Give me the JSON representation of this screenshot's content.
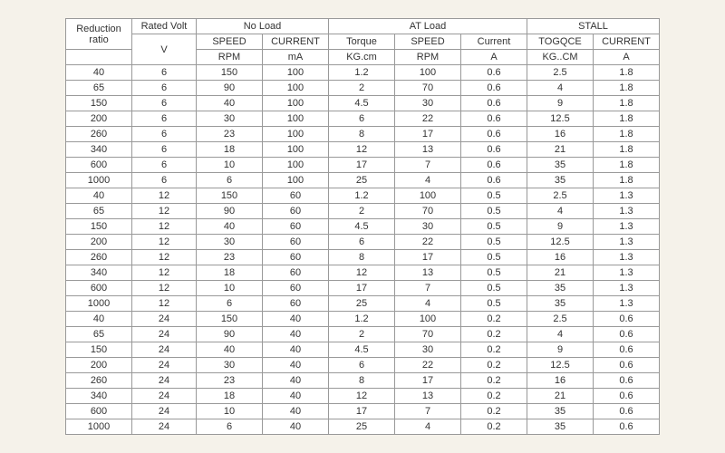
{
  "headers": {
    "groupRow": [
      "Reduction ratio",
      "Rated Volt",
      "No Load",
      "AT  Load",
      "STALL"
    ],
    "subRow": [
      "SPEED",
      "CURRENT",
      "Torque",
      "SPEED",
      "Current",
      "TOGQCE",
      "CURRENT"
    ],
    "unitRow": [
      "V",
      "RPM",
      "mA",
      "KG.cm",
      "RPM",
      "A",
      "KG..CM",
      "A"
    ]
  },
  "columns": [
    "ratio",
    "volt",
    "nl_speed",
    "nl_current",
    "at_torque",
    "at_speed",
    "at_current",
    "st_torque",
    "st_current"
  ],
  "rows": [
    [
      "40",
      "6",
      "150",
      "100",
      "1.2",
      "100",
      "0.6",
      "2.5",
      "1.8"
    ],
    [
      "65",
      "6",
      "90",
      "100",
      "2",
      "70",
      "0.6",
      "4",
      "1.8"
    ],
    [
      "150",
      "6",
      "40",
      "100",
      "4.5",
      "30",
      "0.6",
      "9",
      "1.8"
    ],
    [
      "200",
      "6",
      "30",
      "100",
      "6",
      "22",
      "0.6",
      "12.5",
      "1.8"
    ],
    [
      "260",
      "6",
      "23",
      "100",
      "8",
      "17",
      "0.6",
      "16",
      "1.8"
    ],
    [
      "340",
      "6",
      "18",
      "100",
      "12",
      "13",
      "0.6",
      "21",
      "1.8"
    ],
    [
      "600",
      "6",
      "10",
      "100",
      "17",
      "7",
      "0.6",
      "35",
      "1.8"
    ],
    [
      "1000",
      "6",
      "6",
      "100",
      "25",
      "4",
      "0.6",
      "35",
      "1.8"
    ],
    [
      "40",
      "12",
      "150",
      "60",
      "1.2",
      "100",
      "0.5",
      "2.5",
      "1.3"
    ],
    [
      "65",
      "12",
      "90",
      "60",
      "2",
      "70",
      "0.5",
      "4",
      "1.3"
    ],
    [
      "150",
      "12",
      "40",
      "60",
      "4.5",
      "30",
      "0.5",
      "9",
      "1.3"
    ],
    [
      "200",
      "12",
      "30",
      "60",
      "6",
      "22",
      "0.5",
      "12.5",
      "1.3"
    ],
    [
      "260",
      "12",
      "23",
      "60",
      "8",
      "17",
      "0.5",
      "16",
      "1.3"
    ],
    [
      "340",
      "12",
      "18",
      "60",
      "12",
      "13",
      "0.5",
      "21",
      "1.3"
    ],
    [
      "600",
      "12",
      "10",
      "60",
      "17",
      "7",
      "0.5",
      "35",
      "1.3"
    ],
    [
      "1000",
      "12",
      "6",
      "60",
      "25",
      "4",
      "0.5",
      "35",
      "1.3"
    ],
    [
      "40",
      "24",
      "150",
      "40",
      "1.2",
      "100",
      "0.2",
      "2.5",
      "0.6"
    ],
    [
      "65",
      "24",
      "90",
      "40",
      "2",
      "70",
      "0.2",
      "4",
      "0.6"
    ],
    [
      "150",
      "24",
      "40",
      "40",
      "4.5",
      "30",
      "0.2",
      "9",
      "0.6"
    ],
    [
      "200",
      "24",
      "30",
      "40",
      "6",
      "22",
      "0.2",
      "12.5",
      "0.6"
    ],
    [
      "260",
      "24",
      "23",
      "40",
      "8",
      "17",
      "0.2",
      "16",
      "0.6"
    ],
    [
      "340",
      "24",
      "18",
      "40",
      "12",
      "13",
      "0.2",
      "21",
      "0.6"
    ],
    [
      "600",
      "24",
      "10",
      "40",
      "17",
      "7",
      "0.2",
      "35",
      "0.6"
    ],
    [
      "1000",
      "24",
      "6",
      "40",
      "25",
      "4",
      "0.2",
      "35",
      "0.6"
    ]
  ],
  "style": {
    "background_color": "#f5f2ea",
    "table_bg": "#ffffff",
    "border_color": "#999999",
    "text_color": "#333333",
    "font_size": 11,
    "col_widths": {
      "ratio": 60,
      "volt": 58,
      "std": 60
    }
  }
}
